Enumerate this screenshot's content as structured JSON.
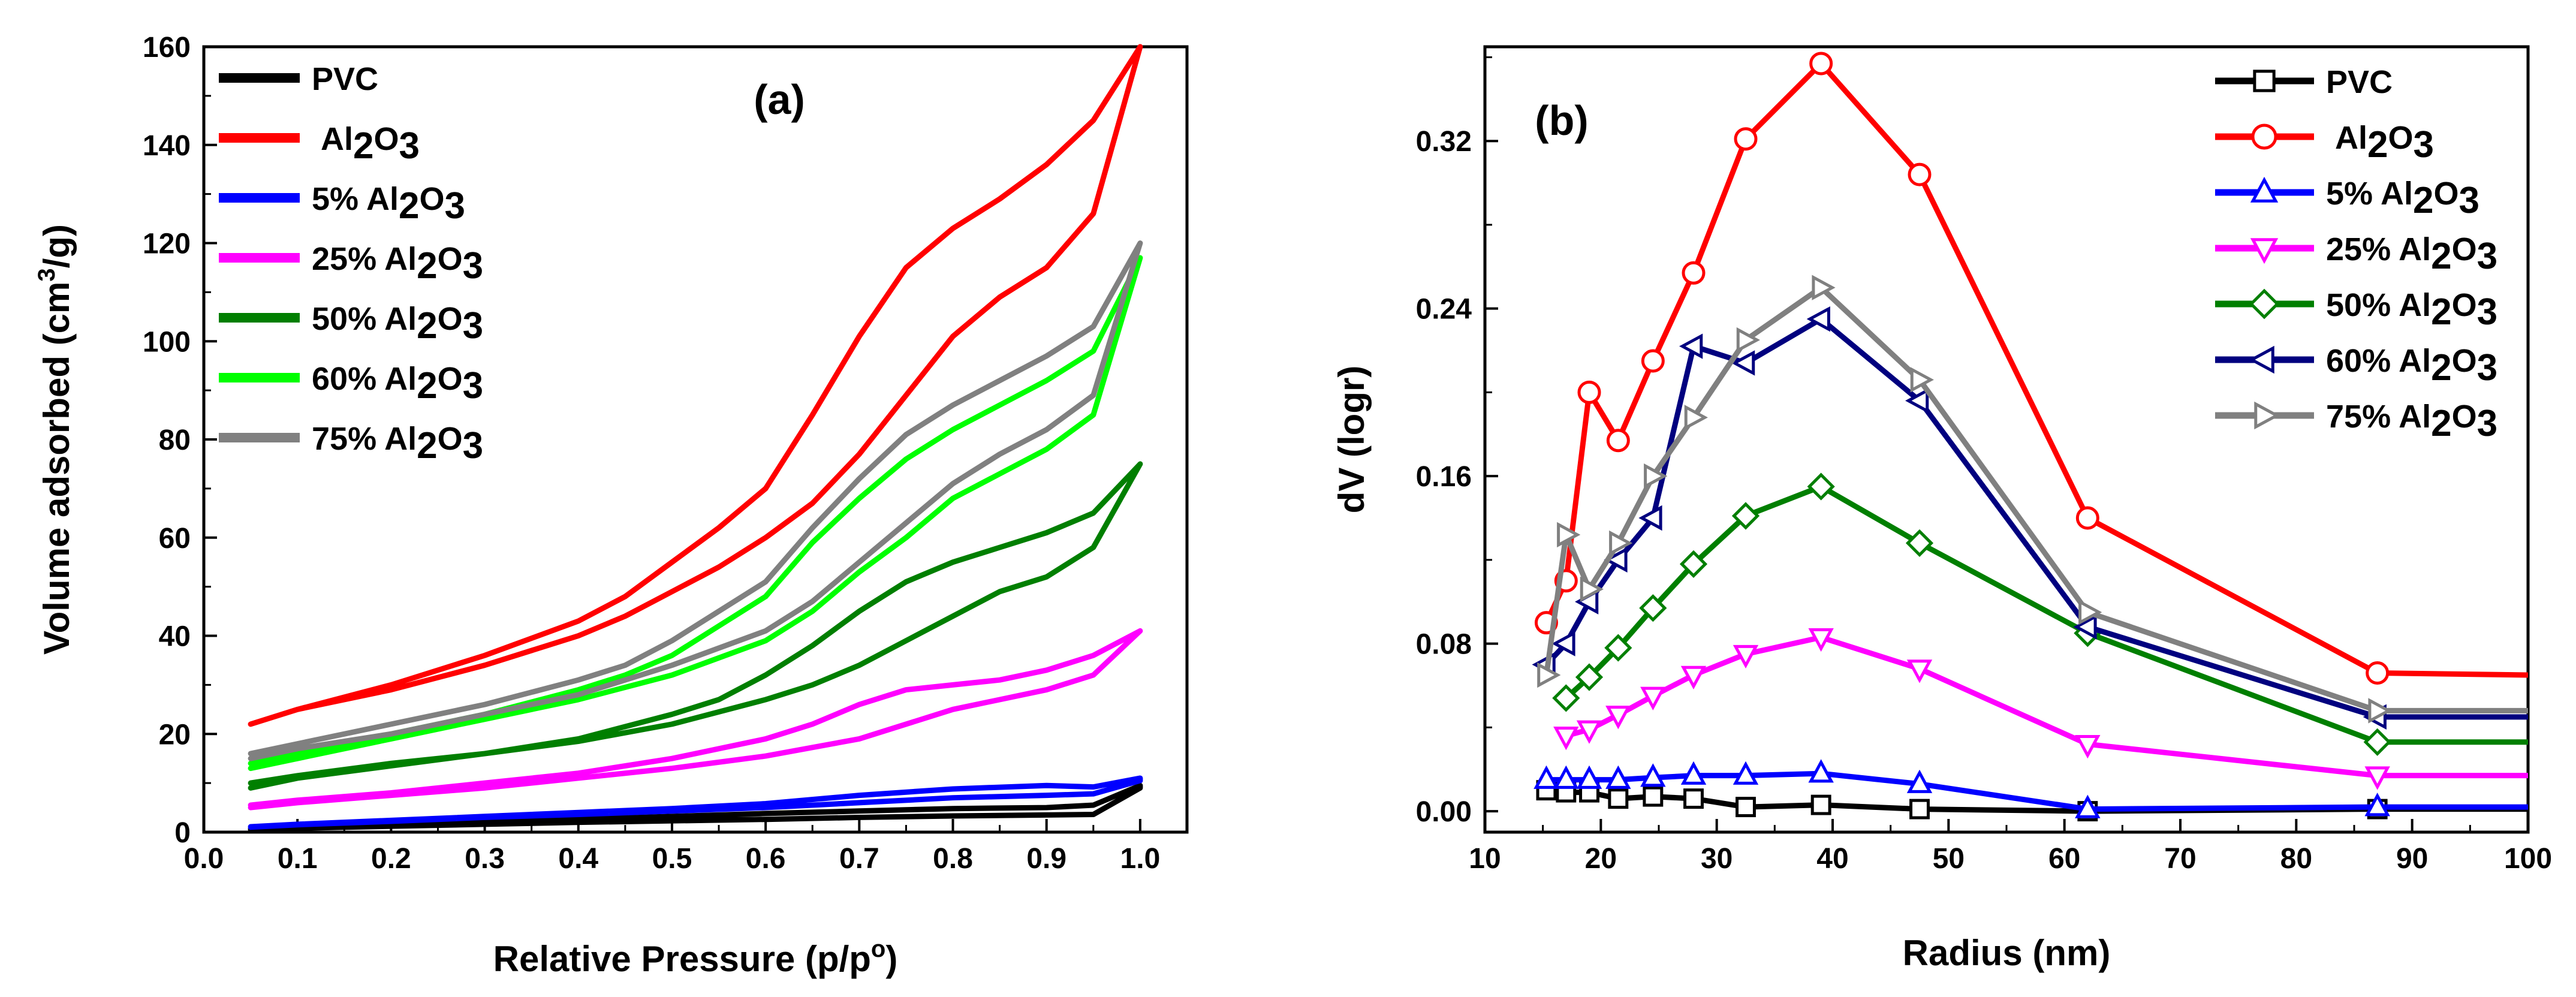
{
  "chart_data": [
    {
      "type": "line",
      "panel_label": "(a)",
      "xlabel": "Relative Pressure (p/p",
      "xlabel_sup": "o",
      "xlabel_end": ")",
      "ylabel": "Volume adsorbed (cm",
      "ylabel_sup": "3",
      "ylabel_end": "/g)",
      "xlim": [
        0.0,
        1.05
      ],
      "ylim": [
        0,
        160
      ],
      "xticks": [
        0.0,
        0.1,
        0.2,
        0.3,
        0.4,
        0.5,
        0.6,
        0.7,
        0.8,
        0.9,
        1.0
      ],
      "xtick_labels": [
        "0.0",
        "0.1",
        "0.2",
        "0.3",
        "0.4",
        "0.5",
        "0.6",
        "0.7",
        "0.8",
        "0.9",
        "1.0"
      ],
      "yticks": [
        0,
        20,
        40,
        60,
        80,
        100,
        120,
        140,
        160
      ],
      "ytick_labels": [
        "0",
        "20",
        "40",
        "60",
        "80",
        "100",
        "120",
        "140",
        "160"
      ],
      "legend_position": "top-left",
      "series": [
        {
          "name": "PVC",
          "sub": "",
          "color": "#000000",
          "adsorption": {
            "x": [
              0.05,
              0.1,
              0.2,
              0.3,
              0.4,
              0.5,
              0.6,
              0.7,
              0.8,
              0.9,
              0.95,
              1.0
            ],
            "y": [
              0.5,
              0.8,
              1.2,
              1.6,
              2.0,
              2.3,
              2.6,
              3.0,
              3.3,
              3.5,
              3.6,
              9.0
            ]
          },
          "desorption": {
            "x": [
              1.0,
              0.95,
              0.9,
              0.8,
              0.7,
              0.6,
              0.5,
              0.4,
              0.3,
              0.2,
              0.1,
              0.05
            ],
            "y": [
              9.5,
              5.5,
              5.0,
              4.8,
              4.3,
              3.8,
              3.2,
              2.6,
              2.0,
              1.5,
              1.0,
              0.7
            ]
          }
        },
        {
          "name": "Al",
          "sub": "2",
          "name_mid": "O",
          "sub2": "3",
          "prefix": "",
          "color": "#ff0000",
          "adsorption": {
            "x": [
              0.05,
              0.1,
              0.2,
              0.3,
              0.4,
              0.45,
              0.5,
              0.55,
              0.6,
              0.65,
              0.7,
              0.75,
              0.8,
              0.85,
              0.9,
              0.95,
              1.0
            ],
            "y": [
              22,
              25,
              29,
              34,
              40,
              44,
              49,
              54,
              60,
              67,
              77,
              89,
              101,
              109,
              115,
              126,
              160
            ]
          },
          "desorption": {
            "x": [
              1.0,
              0.95,
              0.9,
              0.85,
              0.8,
              0.75,
              0.7,
              0.65,
              0.6,
              0.55,
              0.5,
              0.45,
              0.4,
              0.3,
              0.2,
              0.1,
              0.05
            ],
            "y": [
              160,
              145,
              136,
              129,
              123,
              115,
              101,
              85,
              70,
              62,
              55,
              48,
              43,
              36,
              30,
              25,
              22
            ]
          }
        },
        {
          "name": "Al",
          "sub": "2",
          "name_mid": "O",
          "sub2": "3",
          "prefix": "5% ",
          "color": "#0000ff",
          "adsorption": {
            "x": [
              0.05,
              0.1,
              0.2,
              0.3,
              0.4,
              0.5,
              0.6,
              0.7,
              0.8,
              0.9,
              0.95,
              1.0
            ],
            "y": [
              1.0,
              1.5,
              2.2,
              3.0,
              3.6,
              4.3,
              5.0,
              6.0,
              7.0,
              7.5,
              7.8,
              10.5
            ]
          },
          "desorption": {
            "x": [
              1.0,
              0.95,
              0.9,
              0.8,
              0.7,
              0.6,
              0.5,
              0.4,
              0.3,
              0.2,
              0.1,
              0.05
            ],
            "y": [
              11.0,
              9.2,
              9.5,
              8.8,
              7.5,
              5.8,
              4.8,
              4.0,
              3.2,
              2.4,
              1.6,
              1.1
            ]
          }
        },
        {
          "name": "Al",
          "sub": "2",
          "name_mid": "O",
          "sub2": "3",
          "prefix": "25% ",
          "color": "#ff00ff",
          "adsorption": {
            "x": [
              0.05,
              0.1,
              0.2,
              0.3,
              0.4,
              0.5,
              0.6,
              0.7,
              0.8,
              0.9,
              0.95,
              1.0
            ],
            "y": [
              5,
              6,
              7.5,
              9,
              11,
              13,
              15.5,
              19,
              25,
              29,
              32,
              41
            ]
          },
          "desorption": {
            "x": [
              1.0,
              0.95,
              0.9,
              0.85,
              0.8,
              0.75,
              0.7,
              0.65,
              0.6,
              0.5,
              0.4,
              0.3,
              0.2,
              0.1,
              0.05
            ],
            "y": [
              41,
              36,
              33,
              31,
              30,
              29,
              26,
              22,
              19,
              15,
              12,
              10,
              8,
              6.5,
              5.5
            ]
          }
        },
        {
          "name": "Al",
          "sub": "2",
          "name_mid": "O",
          "sub2": "3",
          "prefix": "50% ",
          "color": "#007f00",
          "adsorption": {
            "x": [
              0.05,
              0.1,
              0.2,
              0.3,
              0.4,
              0.5,
              0.6,
              0.65,
              0.7,
              0.75,
              0.8,
              0.85,
              0.9,
              0.95,
              1.0
            ],
            "y": [
              9,
              11,
              13.5,
              16,
              18.5,
              22,
              27,
              30,
              34,
              39,
              44,
              49,
              52,
              58,
              75
            ]
          },
          "desorption": {
            "x": [
              1.0,
              0.95,
              0.9,
              0.85,
              0.8,
              0.75,
              0.7,
              0.65,
              0.6,
              0.55,
              0.5,
              0.4,
              0.3,
              0.2,
              0.1,
              0.05
            ],
            "y": [
              75,
              65,
              61,
              58,
              55,
              51,
              45,
              38,
              32,
              27,
              24,
              19,
              16,
              14,
              11.5,
              10
            ]
          }
        },
        {
          "name": "Al",
          "sub": "2",
          "name_mid": "O",
          "sub2": "3",
          "prefix": "60% ",
          "color": "#00ff00",
          "adsorption": {
            "x": [
              0.05,
              0.1,
              0.2,
              0.3,
              0.4,
              0.5,
              0.6,
              0.65,
              0.7,
              0.75,
              0.8,
              0.85,
              0.9,
              0.95,
              1.0
            ],
            "y": [
              13,
              15,
              19,
              23,
              27,
              32,
              39,
              45,
              53,
              60,
              68,
              73,
              78,
              85,
              117
            ]
          },
          "desorption": {
            "x": [
              1.0,
              0.95,
              0.9,
              0.85,
              0.8,
              0.75,
              0.7,
              0.65,
              0.6,
              0.55,
              0.5,
              0.45,
              0.4,
              0.3,
              0.2,
              0.1,
              0.05
            ],
            "y": [
              117,
              98,
              92,
              87,
              82,
              76,
              68,
              59,
              48,
              42,
              36,
              32,
              29,
              24,
              20,
              16,
              14
            ]
          }
        },
        {
          "name": "Al",
          "sub": "2",
          "name_mid": "O",
          "sub2": "3",
          "prefix": "75% ",
          "color": "#808080",
          "adsorption": {
            "x": [
              0.05,
              0.1,
              0.2,
              0.3,
              0.4,
              0.5,
              0.6,
              0.65,
              0.7,
              0.75,
              0.8,
              0.85,
              0.9,
              0.95,
              1.0
            ],
            "y": [
              15,
              17,
              20,
              24,
              28,
              34,
              41,
              47,
              55,
              63,
              71,
              77,
              82,
              89,
              120
            ]
          },
          "desorption": {
            "x": [
              1.0,
              0.95,
              0.9,
              0.85,
              0.8,
              0.75,
              0.7,
              0.65,
              0.6,
              0.55,
              0.5,
              0.45,
              0.4,
              0.3,
              0.2,
              0.1,
              0.05
            ],
            "y": [
              120,
              103,
              97,
              92,
              87,
              81,
              72,
              62,
              51,
              45,
              39,
              34,
              31,
              26,
              22,
              18,
              16
            ]
          }
        }
      ]
    },
    {
      "type": "line",
      "panel_label": "(b)",
      "xlabel": "Radius (nm)",
      "ylabel": "dV (logr)",
      "xlim": [
        10,
        100
      ],
      "ylim": [
        -0.01,
        0.365
      ],
      "xticks": [
        10,
        20,
        30,
        40,
        50,
        60,
        70,
        80,
        90,
        100
      ],
      "xtick_labels": [
        "10",
        "20",
        "30",
        "40",
        "50",
        "60",
        "70",
        "80",
        "90",
        "100"
      ],
      "yticks": [
        0.0,
        0.08,
        0.16,
        0.24,
        0.32
      ],
      "ytick_labels": [
        "0.00",
        "0.08",
        "0.16",
        "0.24",
        "0.32"
      ],
      "legend_position": "top-right",
      "series": [
        {
          "name": "PVC",
          "prefix": "",
          "color": "#000000",
          "marker": "square",
          "x": [
            15.3,
            17,
            19,
            21.5,
            24.5,
            28,
            32.5,
            39,
            47.5,
            62,
            87,
            100
          ],
          "y": [
            0.01,
            0.009,
            0.009,
            0.006,
            0.007,
            0.006,
            0.002,
            0.003,
            0.001,
            0.0,
            0.001,
            0.001
          ]
        },
        {
          "name": "Al2O3",
          "prefix": "",
          "color": "#ff0000",
          "marker": "circle",
          "x": [
            15.3,
            17,
            19,
            21.5,
            24.5,
            28,
            32.5,
            39,
            47.5,
            62,
            87,
            100
          ],
          "y": [
            0.09,
            0.11,
            0.2,
            0.177,
            0.215,
            0.257,
            0.321,
            0.357,
            0.304,
            0.14,
            0.066,
            0.065
          ]
        },
        {
          "name": "Al2O3",
          "prefix": "5% ",
          "color": "#0000ff",
          "marker": "triangle-up",
          "x": [
            15.3,
            17,
            19,
            21.5,
            24.5,
            28,
            32.5,
            39,
            47.5,
            62,
            87,
            100
          ],
          "y": [
            0.015,
            0.015,
            0.015,
            0.015,
            0.016,
            0.017,
            0.017,
            0.018,
            0.013,
            0.001,
            0.002,
            0.002
          ]
        },
        {
          "name": "Al2O3",
          "prefix": "25% ",
          "color": "#ff00ff",
          "marker": "triangle-down",
          "x": [
            17,
            19,
            21.5,
            24.5,
            28,
            32.5,
            39,
            47.5,
            62,
            87,
            100
          ],
          "y": [
            0.036,
            0.039,
            0.046,
            0.055,
            0.065,
            0.075,
            0.083,
            0.068,
            0.032,
            0.017,
            0.017
          ]
        },
        {
          "name": "Al2O3",
          "prefix": "50% ",
          "color": "#007f00",
          "marker": "diamond",
          "x": [
            17,
            19,
            21.5,
            24.5,
            28,
            32.5,
            39,
            47.5,
            62,
            87,
            100
          ],
          "y": [
            0.054,
            0.064,
            0.078,
            0.097,
            0.118,
            0.141,
            0.155,
            0.128,
            0.085,
            0.033,
            0.033
          ]
        },
        {
          "name": "Al2O3",
          "prefix": "60% ",
          "color": "#00007f",
          "marker": "triangle-left",
          "x": [
            15.3,
            17,
            19,
            21.5,
            24.5,
            28,
            32.5,
            39,
            47.5,
            62,
            87,
            100
          ],
          "y": [
            0.07,
            0.08,
            0.1,
            0.12,
            0.14,
            0.222,
            0.214,
            0.235,
            0.196,
            0.088,
            0.045,
            0.045
          ]
        },
        {
          "name": "Al2O3",
          "prefix": "75% ",
          "color": "#808080",
          "marker": "triangle-right",
          "x": [
            15.3,
            17,
            19,
            21.5,
            24.5,
            28,
            32.5,
            39,
            47.5,
            62,
            87,
            100
          ],
          "y": [
            0.065,
            0.132,
            0.106,
            0.128,
            0.16,
            0.188,
            0.225,
            0.25,
            0.206,
            0.095,
            0.048,
            0.048
          ]
        }
      ]
    }
  ]
}
